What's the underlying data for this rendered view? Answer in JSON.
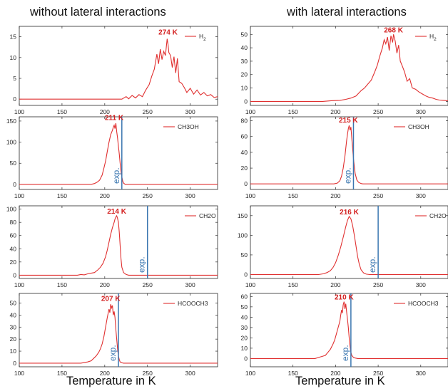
{
  "figure": {
    "left_title": "without lateral interactions",
    "right_title": "with lateral interactions",
    "left_xlabel": "Temperature in K",
    "right_xlabel": "Temperature in K",
    "exp_label": "exp.",
    "colors": {
      "curve": "#e03030",
      "exp_line": "#3a76b0",
      "peak_text": "#d32020"
    }
  },
  "chart_data": [
    {
      "type": "line",
      "name": "H2",
      "variant": "without lateral interactions",
      "xlim": [
        100,
        332
      ],
      "ylim": [
        -1.5,
        17.5
      ],
      "xticks": [
        100,
        150,
        200,
        250,
        300
      ],
      "yticks": [
        0,
        5,
        10,
        15
      ],
      "legend": "H2",
      "legend_loc": "top-right",
      "peak_label": "274 K",
      "peak_x": 274,
      "peak_y": 15,
      "exp": null,
      "series": [
        {
          "name": "H2",
          "x": [
            100,
            220,
            225,
            228,
            232,
            236,
            240,
            244,
            248,
            252,
            255,
            258,
            261,
            263,
            265,
            267,
            269,
            271,
            273,
            274,
            275,
            277,
            279,
            281,
            283,
            285,
            287,
            290,
            293,
            296,
            300,
            304,
            308,
            312,
            316,
            320,
            324,
            328,
            332
          ],
          "y": [
            0,
            0,
            0.6,
            0.1,
            0.9,
            0.3,
            1.1,
            0.6,
            2.2,
            3.5,
            5.5,
            7.2,
            10.8,
            8.5,
            12,
            9.5,
            11.5,
            10.5,
            14.5,
            13.2,
            11.2,
            10.5,
            7.6,
            10.2,
            6.3,
            9.8,
            4.2,
            3.8,
            2.8,
            1.6,
            2.6,
            1.2,
            2.2,
            1.0,
            1.6,
            0.8,
            1.1,
            0.4,
            0.6
          ]
        }
      ]
    },
    {
      "type": "line",
      "name": "H2",
      "variant": "with lateral interactions",
      "xlim": [
        100,
        332
      ],
      "ylim": [
        -3,
        56
      ],
      "xticks": [
        100,
        150,
        200,
        250,
        300
      ],
      "yticks": [
        0,
        10,
        20,
        30,
        40,
        50
      ],
      "legend": "H2",
      "legend_loc": "top-right",
      "peak_label": "268 K",
      "peak_x": 268,
      "peak_y": 50,
      "exp": null,
      "series": [
        {
          "name": "H2",
          "x": [
            100,
            185,
            195,
            205,
            212,
            218,
            224,
            230,
            234,
            238,
            242,
            246,
            249,
            252,
            255,
            257,
            259,
            261,
            263,
            265,
            267,
            268,
            270,
            272,
            274,
            276,
            278,
            281,
            284,
            287,
            290,
            294,
            298,
            302,
            306,
            310,
            314,
            318,
            322,
            326,
            332
          ],
          "y": [
            0,
            0,
            0.5,
            0.8,
            1.5,
            2.5,
            4,
            8,
            10,
            13,
            16,
            22,
            27,
            34,
            40,
            46,
            43,
            48,
            38,
            49,
            44,
            50,
            45,
            36,
            42,
            30,
            27,
            22,
            15,
            17,
            10,
            9,
            7,
            5.5,
            4,
            3,
            2.5,
            1.5,
            1,
            0.8,
            0.5
          ]
        }
      ]
    },
    {
      "type": "line",
      "name": "CH3OH",
      "variant": "without lateral interactions",
      "xlim": [
        100,
        332
      ],
      "ylim": [
        -12,
        160
      ],
      "xticks": [
        100,
        150,
        200,
        250,
        300
      ],
      "yticks": [
        0,
        50,
        100,
        150
      ],
      "legend": "CH3OH",
      "legend_loc": "top-right",
      "peak_label": "211 K",
      "peak_x": 211,
      "peak_y": 147,
      "exp": 220,
      "series": [
        {
          "name": "CH3OH",
          "x": [
            100,
            184,
            188,
            191,
            194,
            197,
            199,
            201,
            203,
            205,
            207,
            209,
            210,
            211,
            212,
            213,
            214,
            215,
            216,
            217,
            218,
            219,
            220,
            221,
            222,
            224,
            227,
            332
          ],
          "y": [
            0,
            0,
            2,
            5,
            10,
            22,
            38,
            55,
            78,
            100,
            118,
            128,
            135,
            140,
            132,
            145,
            125,
            110,
            90,
            72,
            50,
            32,
            18,
            8,
            3,
            0,
            0,
            0
          ]
        }
      ]
    },
    {
      "type": "line",
      "name": "CH3OH",
      "variant": "with lateral interactions",
      "xlim": [
        100,
        332
      ],
      "ylim": [
        -7,
        85
      ],
      "xticks": [
        100,
        150,
        200,
        250,
        300
      ],
      "yticks": [
        0,
        20,
        40,
        60,
        80
      ],
      "legend": "CH3OH",
      "legend_loc": "top-right",
      "peak_label": "215 K",
      "peak_x": 215,
      "peak_y": 75,
      "exp": 221,
      "series": [
        {
          "name": "CH3OH",
          "x": [
            100,
            198,
            202,
            205,
            207,
            209,
            211,
            212,
            213,
            214,
            215,
            216,
            217,
            218,
            219,
            220,
            221,
            222,
            223,
            225,
            227,
            230,
            232,
            332
          ],
          "y": [
            0,
            0,
            1,
            4,
            10,
            20,
            35,
            45,
            55,
            63,
            70,
            74,
            68,
            72,
            58,
            45,
            32,
            22,
            13,
            5,
            2,
            0.5,
            0,
            0
          ]
        }
      ]
    },
    {
      "type": "line",
      "name": "CH2O",
      "variant": "without lateral interactions",
      "xlim": [
        100,
        332
      ],
      "ylim": [
        -5,
        105
      ],
      "xticks": [
        100,
        150,
        200,
        250,
        300
      ],
      "yticks": [
        0,
        20,
        40,
        60,
        80,
        100
      ],
      "legend": "CH2O",
      "legend_loc": "top-right",
      "peak_label": "214 K",
      "peak_x": 214,
      "peak_y": 90,
      "exp": 250,
      "series": [
        {
          "name": "CH2O",
          "x": [
            100,
            168,
            172,
            176,
            180,
            184,
            188,
            192,
            195,
            198,
            201,
            203,
            205,
            207,
            209,
            211,
            212,
            213,
            214,
            215,
            216,
            217,
            218,
            219,
            220,
            222,
            225,
            228,
            332
          ],
          "y": [
            0,
            0,
            1,
            0.5,
            2,
            3,
            4,
            8,
            12,
            18,
            28,
            38,
            50,
            62,
            72,
            80,
            85,
            88,
            90,
            86,
            80,
            65,
            45,
            25,
            12,
            4,
            1,
            0,
            0
          ]
        }
      ]
    },
    {
      "type": "line",
      "name": "CH2O",
      "variant": "with lateral interactions",
      "xlim": [
        100,
        332
      ],
      "ylim": [
        -10,
        175
      ],
      "xticks": [
        100,
        150,
        200,
        250,
        300
      ],
      "yticks": [
        0,
        50,
        100,
        150
      ],
      "legend": "CH2O",
      "legend_loc": "top-right",
      "peak_label": "216 K",
      "peak_x": 216,
      "peak_y": 148,
      "exp": 250,
      "series": [
        {
          "name": "CH2O",
          "x": [
            100,
            180,
            186,
            190,
            194,
            197,
            200,
            203,
            206,
            209,
            212,
            214,
            216,
            218,
            220,
            222,
            224,
            226,
            228,
            230,
            233,
            236,
            240,
            332
          ],
          "y": [
            0,
            0,
            2,
            5,
            10,
            18,
            30,
            48,
            70,
            95,
            122,
            138,
            148,
            142,
            125,
            100,
            72,
            45,
            25,
            12,
            4,
            1,
            0,
            0
          ]
        }
      ]
    },
    {
      "type": "line",
      "name": "HCOOCH3",
      "variant": "without lateral interactions",
      "xlim": [
        100,
        332
      ],
      "ylim": [
        -3,
        58
      ],
      "xticks": [
        100,
        150,
        200,
        250,
        300
      ],
      "yticks": [
        0,
        10,
        20,
        30,
        40,
        50
      ],
      "legend": "HCOOCH3",
      "legend_loc": "top-right",
      "peak_label": "207 K",
      "peak_x": 207,
      "peak_y": 50,
      "exp": 216,
      "series": [
        {
          "name": "HCOOCH3",
          "x": [
            100,
            172,
            176,
            180,
            184,
            187,
            190,
            193,
            195,
            197,
            199,
            201,
            203,
            205,
            206,
            207,
            208,
            209,
            210,
            211,
            212,
            213,
            214,
            215,
            216,
            217,
            218,
            220,
            222,
            332
          ],
          "y": [
            0,
            0,
            0.5,
            1,
            2,
            4,
            6,
            9,
            12,
            16,
            22,
            30,
            38,
            45,
            42,
            49,
            46,
            48,
            40,
            43,
            38,
            28,
            20,
            12,
            6,
            3,
            1,
            0.3,
            0,
            0
          ]
        }
      ]
    },
    {
      "type": "line",
      "name": "HCOOCH3",
      "variant": "with lateral interactions",
      "xlim": [
        100,
        332
      ],
      "ylim": [
        -8,
        63
      ],
      "xticks": [
        100,
        150,
        200,
        250,
        300
      ],
      "yticks": [
        0,
        10,
        20,
        30,
        40,
        50,
        60
      ],
      "legend": "HCOOCH3",
      "legend_loc": "top-right",
      "peak_label": "210 K",
      "peak_x": 210,
      "peak_y": 55,
      "exp": 218,
      "series": [
        {
          "name": "HCOOCH3",
          "x": [
            100,
            176,
            180,
            184,
            188,
            191,
            194,
            197,
            199,
            201,
            203,
            205,
            206,
            207,
            208,
            209,
            210,
            211,
            212,
            213,
            214,
            215,
            216,
            217,
            218,
            219,
            221,
            223,
            226,
            332
          ],
          "y": [
            0,
            0,
            1,
            2,
            3,
            6,
            9,
            14,
            18,
            24,
            30,
            36,
            42,
            47,
            44,
            52,
            55,
            48,
            53,
            45,
            38,
            30,
            20,
            12,
            6,
            3,
            1,
            0.5,
            0,
            0
          ]
        }
      ]
    }
  ]
}
